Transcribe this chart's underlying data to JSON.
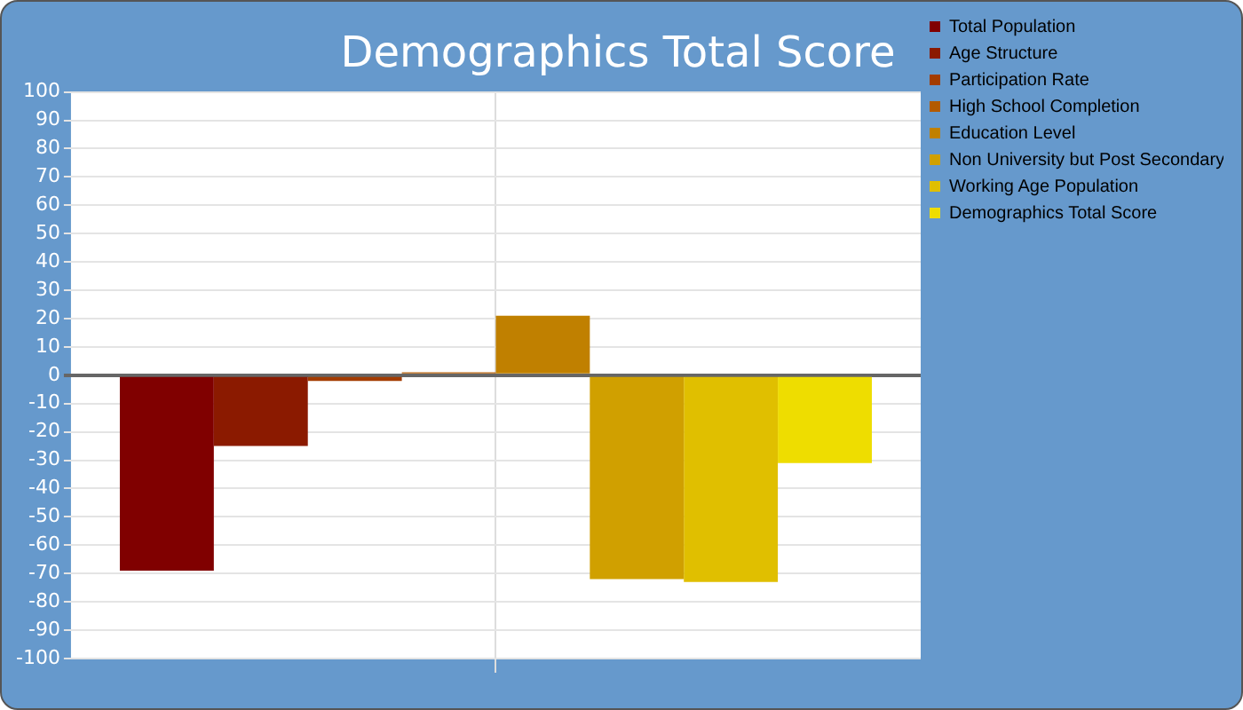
{
  "chart_data": {
    "type": "bar",
    "title": "Demographics Total Score",
    "categories": [
      null
    ],
    "series": [
      {
        "name": "Total Population",
        "color": "#800000",
        "values": [
          -69
        ]
      },
      {
        "name": "Age Structure",
        "color": "#8b1a00",
        "values": [
          -25
        ]
      },
      {
        "name": "Participation Rate",
        "color": "#a33c00",
        "values": [
          -2
        ]
      },
      {
        "name": "High School Completion",
        "color": "#b35a00",
        "values": [
          1
        ]
      },
      {
        "name": "Education Level",
        "color": "#c08000",
        "values": [
          21
        ]
      },
      {
        "name": "Non University but Post Secondary",
        "color": "#d0a000",
        "values": [
          -72
        ]
      },
      {
        "name": "Working Age Population",
        "color": "#e0bf00",
        "values": [
          -73
        ]
      },
      {
        "name": "Demographics Total Score",
        "color": "#eedd00",
        "values": [
          -31
        ]
      }
    ],
    "ylim": [
      -100,
      100
    ],
    "yticks": [
      -100,
      -90,
      -80,
      -70,
      -60,
      -50,
      -40,
      -30,
      -20,
      -10,
      0,
      10,
      20,
      30,
      40,
      50,
      60,
      70,
      80,
      90,
      100
    ],
    "grid": true,
    "legend": "top right"
  }
}
